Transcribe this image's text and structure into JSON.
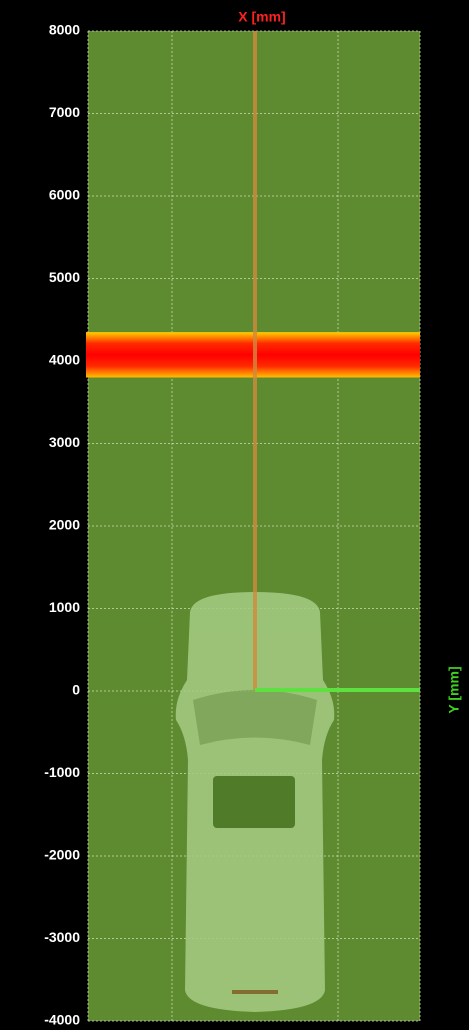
{
  "chart_data": {
    "type": "band",
    "x_label": "X [mm]",
    "y_label": "Y [mm]",
    "ylim": [
      -4000,
      8000
    ],
    "yticks": [
      8000,
      7000,
      6000,
      5000,
      4000,
      3000,
      2000,
      1000,
      0,
      -1000,
      -2000,
      -3000,
      -4000
    ],
    "band": [
      3800,
      4350
    ],
    "grid": true
  }
}
